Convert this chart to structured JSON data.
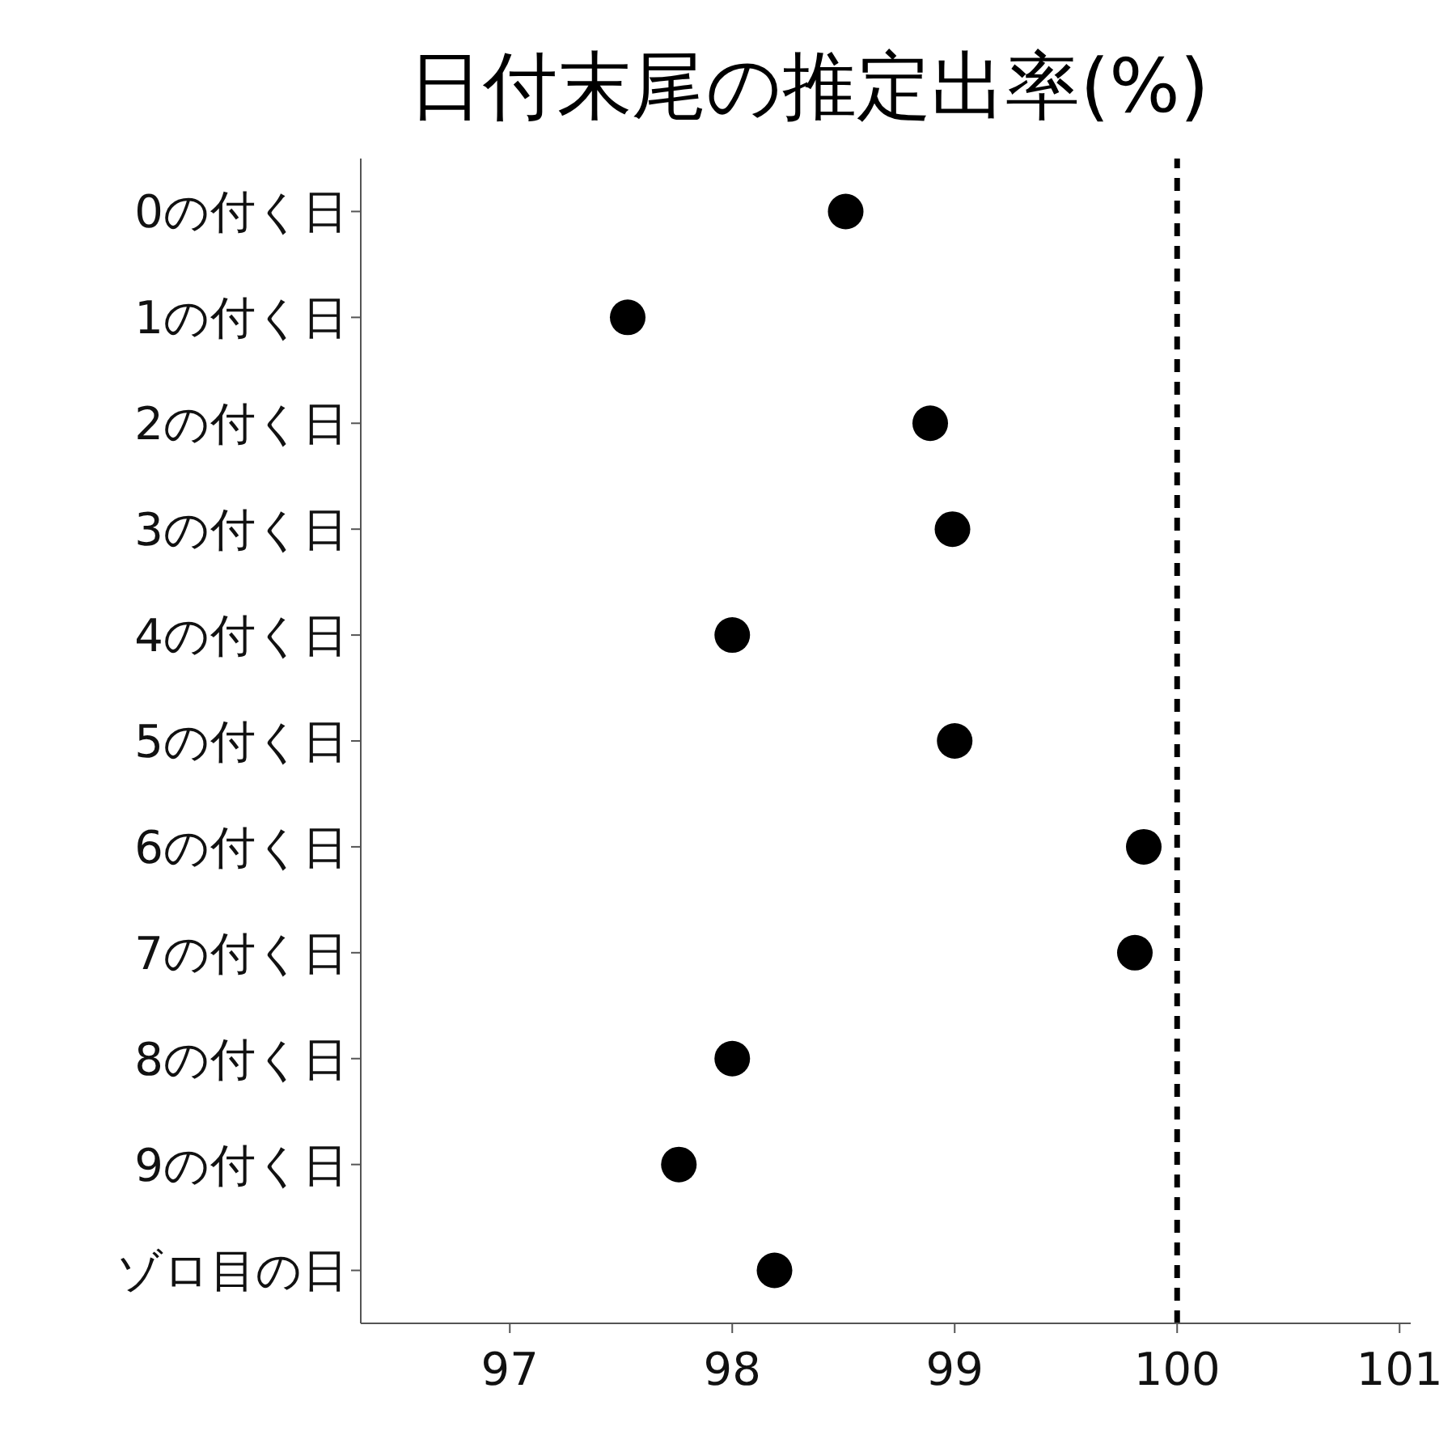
{
  "chart_data": {
    "type": "scatter",
    "title": "日付末尾の推定出率(%)",
    "orientation": "horizontal",
    "categories": [
      "0の付く日",
      "1の付く日",
      "2の付く日",
      "3の付く日",
      "4の付く日",
      "5の付く日",
      "6の付く日",
      "7の付く日",
      "8の付く日",
      "9の付く日",
      "ゾロ目の日"
    ],
    "values": [
      98.51,
      97.53,
      98.89,
      98.99,
      98.0,
      99.0,
      99.85,
      99.81,
      98.0,
      97.76,
      98.19
    ],
    "color": "#000000",
    "marker": "circle",
    "xlim": [
      96.33,
      101.05
    ],
    "xticks": [
      97,
      98,
      99,
      100,
      101
    ],
    "ref_lines": [
      {
        "axis": "x",
        "value": 100,
        "color": "#000000",
        "line_style": "dashed"
      }
    ],
    "grid": false
  }
}
